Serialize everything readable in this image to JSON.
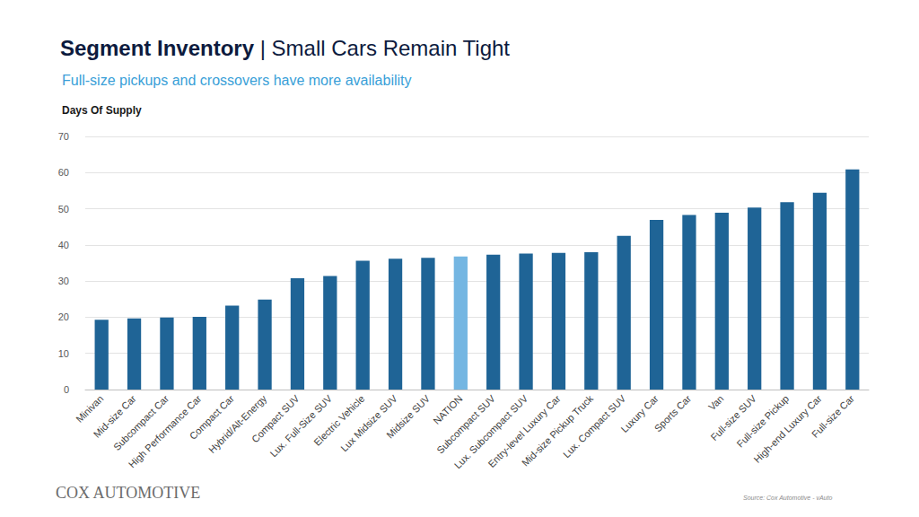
{
  "chart_data": {
    "type": "bar",
    "title": "Segment Inventory | Small Cars Remain Tight",
    "subtitle": "Full-size pickups and crossovers have more availability",
    "y_label": "Days Of Supply",
    "annotations": [
      "COX AUTOMOTIVE",
      "Source: Cox Automotive - vAuto"
    ],
    "categories": [
      "Minivan",
      "Mid-size Car",
      "Subcompact Car",
      "High Performance Car",
      "Compact Car",
      "Hybrid/Alt-Energy",
      "Compact SUV",
      "Lux. Full-Size SUV",
      "Electric Vehicle",
      "Lux Midsize SUV",
      "Midsize SUV",
      "NATION",
      "Subcompact SUV",
      "Lux. Subcompact SUV",
      "Entry-level Luxury Car",
      "Mid-size Pickup Truck",
      "Lux. Compact SUV",
      "Luxury Car",
      "Sports Car",
      "Van",
      "Full-size SUV",
      "Full-size Pickup",
      "High-end Luxury Car",
      "Full-size Car"
    ],
    "values": [
      19.3,
      19.7,
      19.9,
      20.1,
      23.2,
      24.9,
      30.8,
      31.4,
      35.6,
      36.2,
      36.4,
      36.8,
      37.3,
      37.6,
      37.8,
      38.0,
      42.5,
      46.9,
      48.3,
      48.9,
      50.3,
      51.8,
      54.4,
      60.9
    ],
    "colors": [
      "#1f6496",
      "#1f6496",
      "#1f6496",
      "#1f6496",
      "#1f6496",
      "#1f6496",
      "#1f6496",
      "#1f6496",
      "#1f6496",
      "#1f6496",
      "#1f6496",
      "#74b6e2",
      "#1f6496",
      "#1f6496",
      "#1f6496",
      "#1f6496",
      "#1f6496",
      "#1f6496",
      "#1f6496",
      "#1f6496",
      "#1f6496",
      "#1f6496",
      "#1f6496",
      "#1f6496"
    ],
    "ylim": [
      0,
      70
    ],
    "yticks": [
      0,
      10,
      20,
      30,
      40,
      50,
      60,
      70
    ],
    "grid": true
  }
}
